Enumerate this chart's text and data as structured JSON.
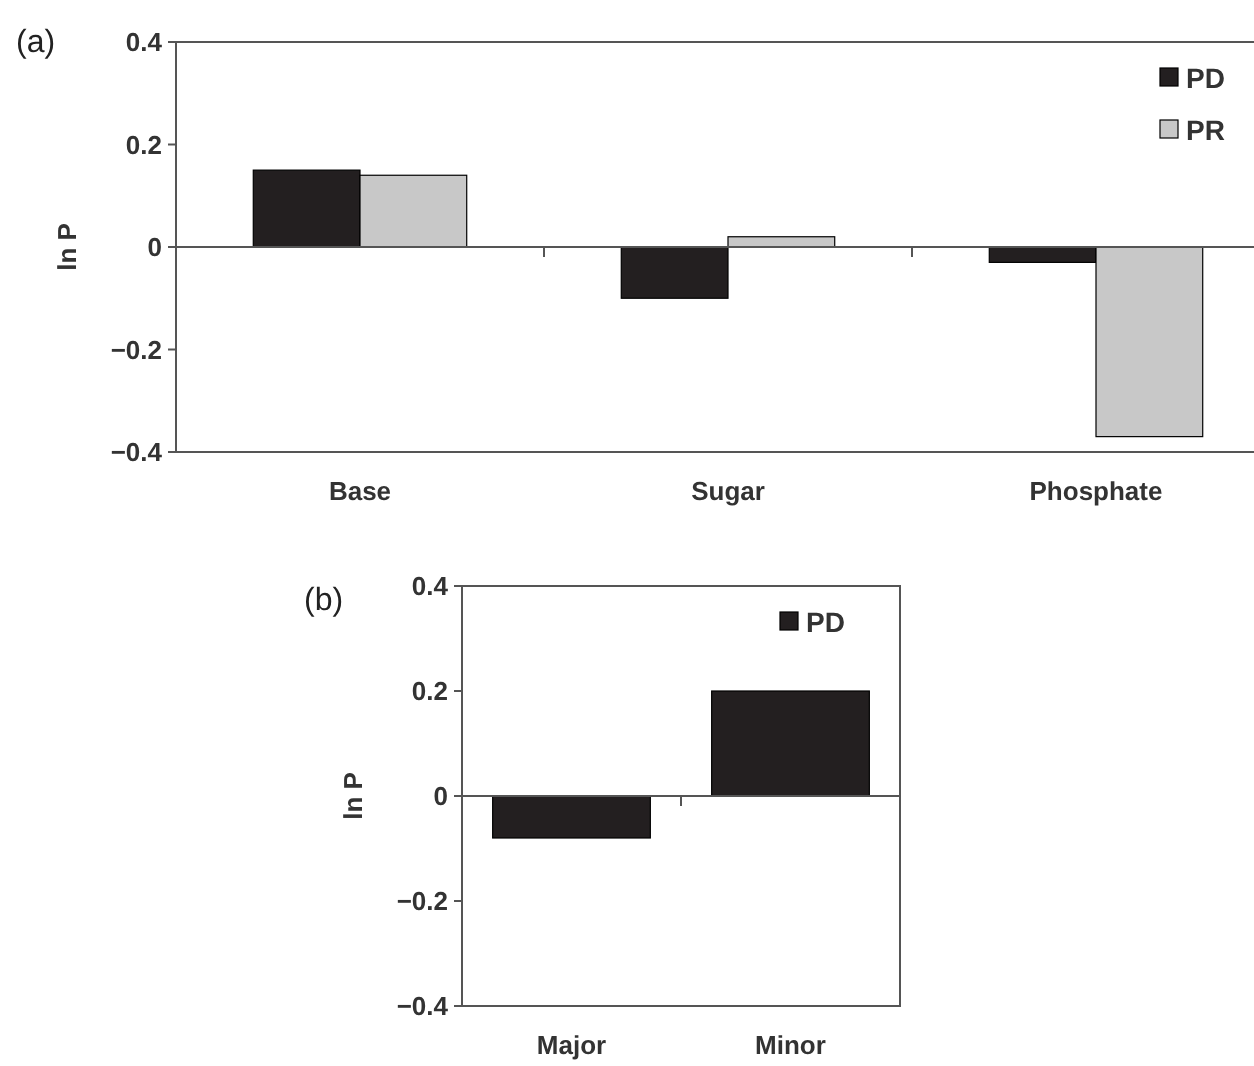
{
  "chart_data": [
    {
      "type": "bar",
      "title": "(a)",
      "ylabel": "ln P",
      "categories": [
        "Base",
        "Sugar",
        "Phosphate"
      ],
      "series": [
        {
          "name": "PD",
          "color": "#231f20",
          "values": [
            0.15,
            -0.1,
            -0.03
          ]
        },
        {
          "name": "PR",
          "color": "#c8c8c8",
          "values": [
            0.14,
            0.02,
            -0.37
          ]
        }
      ],
      "ylim": [
        -0.4,
        0.4
      ],
      "yticks": [
        -0.4,
        -0.2,
        0,
        0.2,
        0.4
      ],
      "legend": "top right"
    },
    {
      "type": "bar",
      "title": "(b)",
      "ylabel": "ln P",
      "categories": [
        "Major",
        "Minor"
      ],
      "series": [
        {
          "name": "PD",
          "color": "#231f20",
          "values": [
            -0.08,
            0.2
          ]
        }
      ],
      "ylim": [
        -0.4,
        0.4
      ],
      "yticks": [
        -0.4,
        -0.2,
        0,
        0.2,
        0.4
      ],
      "legend": "top right"
    }
  ]
}
